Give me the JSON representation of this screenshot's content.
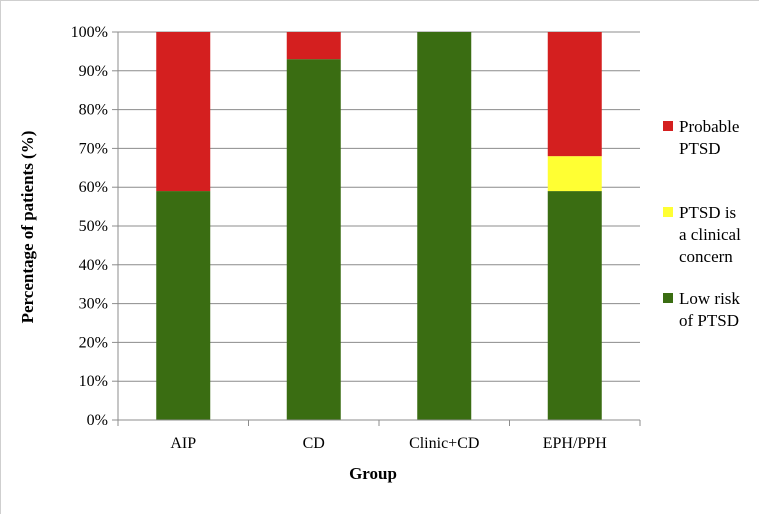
{
  "chart_data": {
    "type": "bar",
    "stacked": true,
    "title": "",
    "xlabel": "Group",
    "ylabel": "Percentage of patients (%)",
    "categories": [
      "AIP",
      "CD",
      "Clinic+CD",
      "EPH/PPH"
    ],
    "ylim": [
      0,
      100
    ],
    "yticks": [
      "0%",
      "10%",
      "20%",
      "30%",
      "40%",
      "50%",
      "60%",
      "70%",
      "80%",
      "90%",
      "100%"
    ],
    "grid": true,
    "legend_position": "right",
    "series": [
      {
        "name": "Low risk of PTSD",
        "legend_lines": [
          "Low risk",
          "of PTSD"
        ],
        "color": "#3a6d12",
        "values": [
          59,
          93,
          100,
          59
        ]
      },
      {
        "name": "PTSD is a clinical concern",
        "legend_lines": [
          "PTSD is",
          "a clinical",
          "concern"
        ],
        "color": "#ffff33",
        "values": [
          0,
          0,
          0,
          9
        ]
      },
      {
        "name": "Probable PTSD",
        "legend_lines": [
          "Probable",
          "PTSD"
        ],
        "color": "#d41f1f",
        "values": [
          41,
          7,
          0,
          32
        ]
      }
    ],
    "legend_order": [
      2,
      1,
      0
    ]
  }
}
